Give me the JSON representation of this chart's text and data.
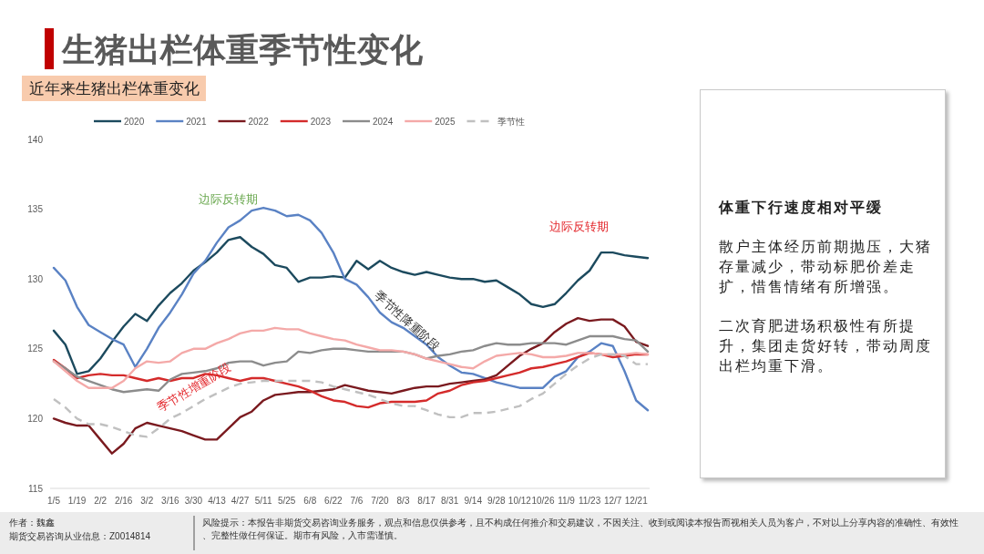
{
  "chart_data": [
    {
      "type": "line",
      "title": "生猪出栏体重季节性变化",
      "subtitle": "近年来生猪出栏体重变化",
      "categories": [
        "1/5",
        null,
        "1/19",
        null,
        "2/2",
        null,
        "2/16",
        null,
        "3/2",
        null,
        "3/16",
        null,
        "3/30",
        null,
        "4/13",
        null,
        "4/27",
        null,
        "5/11",
        null,
        "5/25",
        null,
        "6/8",
        null,
        "6/22",
        null,
        "7/6",
        null,
        "7/20",
        null,
        "8/3",
        null,
        "8/17",
        null,
        "8/31",
        null,
        "9/14",
        null,
        "9/28",
        null,
        "10/12",
        null,
        "10/26",
        null,
        "11/9",
        null,
        "11/23",
        null,
        "12/7",
        null,
        "12/21",
        null
      ],
      "series": [
        {
          "name": "2020",
          "color": "#1c4a5e",
          "values": [
            126.3,
            125.3,
            123.2,
            123.4,
            124.3,
            125.5,
            126.6,
            127.5,
            127.0,
            128.1,
            129.0,
            129.7,
            130.6,
            131.2,
            131.9,
            132.8,
            133.0,
            132.3,
            131.8,
            131.0,
            130.8,
            129.8,
            130.1,
            130.1,
            130.2,
            130.1,
            131.3,
            130.7,
            131.3,
            130.8,
            130.5,
            130.3,
            130.5,
            130.3,
            130.1,
            130.0,
            130.0,
            129.8,
            129.9,
            129.4,
            128.9,
            128.2,
            128.0,
            128.2,
            129.0,
            129.9,
            130.6,
            131.9,
            131.9,
            131.7,
            131.6,
            131.5
          ]
        },
        {
          "name": "2021",
          "color": "#5a82c4",
          "values": [
            130.8,
            129.9,
            128.0,
            126.7,
            126.2,
            125.7,
            125.3,
            123.7,
            125.0,
            126.5,
            127.6,
            128.9,
            130.4,
            131.3,
            132.6,
            133.7,
            134.2,
            134.9,
            135.1,
            134.9,
            134.5,
            134.6,
            134.2,
            133.3,
            131.9,
            130.0,
            129.6,
            128.7,
            127.6,
            126.9,
            126.5,
            125.9,
            125.3,
            124.4,
            123.8,
            123.3,
            123.2,
            122.9,
            122.6,
            122.4,
            122.2,
            122.2,
            122.2,
            123.0,
            123.4,
            124.4,
            124.8,
            125.4,
            125.2,
            123.4,
            121.3,
            120.6
          ]
        },
        {
          "name": "2022",
          "color": "#7a1a1f",
          "values": [
            120.0,
            119.7,
            119.5,
            119.5,
            118.5,
            117.5,
            118.2,
            119.3,
            119.7,
            119.5,
            119.3,
            119.1,
            118.8,
            118.5,
            118.5,
            119.3,
            120.1,
            120.5,
            121.3,
            121.7,
            121.8,
            121.9,
            121.9,
            122.0,
            122.1,
            122.4,
            122.2,
            122.0,
            121.9,
            121.8,
            122.0,
            122.2,
            122.3,
            122.3,
            122.5,
            122.6,
            122.7,
            122.8,
            123.1,
            123.8,
            124.5,
            125.0,
            125.4,
            126.2,
            126.8,
            127.2,
            127.0,
            127.1,
            127.1,
            126.6,
            125.5,
            125.2
          ]
        },
        {
          "name": "2023",
          "color": "#d42b2b",
          "values": [
            124.2,
            123.6,
            122.9,
            123.1,
            123.2,
            123.1,
            123.1,
            122.9,
            122.7,
            122.9,
            122.7,
            122.9,
            122.9,
            123.2,
            123.1,
            122.9,
            122.7,
            122.9,
            122.9,
            122.7,
            122.5,
            122.3,
            122.0,
            121.6,
            121.3,
            121.2,
            120.9,
            120.8,
            121.1,
            121.2,
            121.2,
            121.2,
            121.3,
            121.8,
            122.0,
            122.4,
            122.6,
            122.7,
            122.9,
            123.1,
            123.3,
            123.6,
            123.7,
            123.9,
            124.1,
            124.4,
            124.7,
            124.6,
            124.4,
            124.5,
            124.6,
            124.6
          ]
        },
        {
          "name": "2024",
          "color": "#8c8c8c",
          "values": [
            124.1,
            123.6,
            123.0,
            122.7,
            122.4,
            122.1,
            121.9,
            122.0,
            122.1,
            122.0,
            122.8,
            123.2,
            123.3,
            123.4,
            123.6,
            124.0,
            124.1,
            124.1,
            123.8,
            124.0,
            124.1,
            124.8,
            124.7,
            124.9,
            125.0,
            125.0,
            124.9,
            124.8,
            124.8,
            124.8,
            124.8,
            124.6,
            124.3,
            124.5,
            124.6,
            124.8,
            124.9,
            125.2,
            125.4,
            125.3,
            125.3,
            125.4,
            125.4,
            125.4,
            125.3,
            125.6,
            125.9,
            125.9,
            125.9,
            125.7,
            125.6,
            124.8
          ]
        },
        {
          "name": "2025",
          "color": "#f4a9a8",
          "values": [
            124.1,
            123.4,
            122.7,
            122.2,
            122.2,
            122.2,
            122.7,
            123.6,
            124.1,
            124.0,
            124.1,
            124.7,
            125.0,
            125.0,
            125.4,
            125.7,
            126.1,
            126.3,
            126.3,
            126.5,
            126.4,
            126.4,
            126.1,
            125.9,
            125.7,
            125.6,
            125.3,
            125.1,
            124.9,
            124.9,
            124.8,
            124.6,
            124.3,
            124.1,
            123.9,
            123.7,
            123.6,
            124.1,
            124.5,
            124.6,
            124.7,
            124.6,
            124.4,
            124.4,
            124.5,
            124.7,
            124.7,
            124.6,
            124.6,
            124.6,
            124.7,
            124.6
          ]
        },
        {
          "name": "季节性",
          "color": "#c0c0c0",
          "line_style": "dashed",
          "values": [
            121.4,
            120.8,
            120.0,
            119.6,
            119.6,
            119.4,
            119.1,
            118.8,
            118.7,
            119.3,
            120.0,
            120.4,
            120.9,
            121.4,
            121.8,
            122.2,
            122.5,
            122.6,
            122.7,
            122.7,
            122.7,
            122.7,
            122.7,
            122.6,
            122.3,
            122.1,
            121.9,
            121.7,
            121.4,
            121.1,
            120.9,
            120.9,
            120.6,
            120.3,
            120.1,
            120.1,
            120.4,
            120.4,
            120.5,
            120.7,
            120.9,
            121.4,
            121.8,
            122.5,
            123.2,
            123.8,
            124.3,
            124.6,
            124.6,
            124.5,
            123.9,
            123.9
          ]
        }
      ],
      "ylim": [
        115,
        140
      ],
      "yticks": [
        115,
        120,
        125,
        130,
        135,
        140
      ],
      "legend": "top",
      "annotations": [
        "边际反转期",
        "边际反转期",
        "季节性降重阶段",
        "季节性增重阶段",
        "作者：魏鑫",
        "期货交易咨询从业信息：Z0014814",
        "风险提示：本报告非期货交易咨询业务服务，观点和信息仅供参考，且不构成任何推介和交易建议，不因关注、收到或阅读本报告而视相关人员为客户，不对以上分享内容的准确性、有效性、完整性做任何保证。期市有风险，入市需谨慎。"
      ]
    },
    {
      "type": "other",
      "title": "体重下行速度相对平缓",
      "annotations": [
        "散户主体经历前期抛压，大猪存量减少，带动标肥价差走扩，惜售情绪有所增强。",
        "二次育肥进场积极性有所提升，集团走货好转，带动周度出栏均重下滑。"
      ]
    }
  ]
}
